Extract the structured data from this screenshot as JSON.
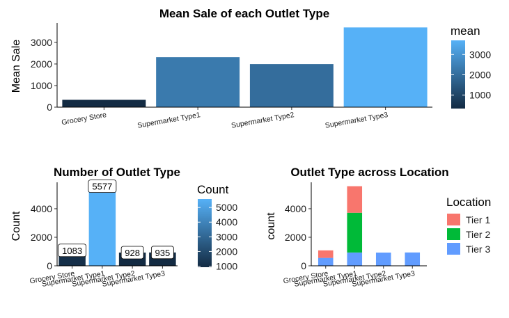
{
  "chart_data": [
    {
      "type": "bar",
      "title": "Mean Sale of each Outlet Type",
      "xlabel": "",
      "ylabel": "Mean Sale",
      "categories": [
        "Grocery Store",
        "Supermarket Type1",
        "Supermarket Type2",
        "Supermarket Type3"
      ],
      "values": [
        340,
        2316,
        1995,
        3694
      ],
      "ylim": [
        0,
        3900
      ],
      "yticks": [
        0,
        1000,
        2000,
        3000
      ],
      "legend": {
        "title": "mean",
        "type": "colorbar",
        "ticks": [
          1000,
          2000,
          3000
        ],
        "range": [
          340,
          3694
        ],
        "position": "right"
      },
      "colors": {
        "low": "#132B43",
        "high": "#56B1F7"
      },
      "grid": false
    },
    {
      "type": "bar",
      "title": "Number of Outlet Type",
      "xlabel": "",
      "ylabel": "Count",
      "categories": [
        "Grocery Store",
        "Supermarket Type1",
        "Supermarket Type2",
        "Supermarket Type3"
      ],
      "values": [
        1083,
        5577,
        928,
        935
      ],
      "data_labels": [
        "1083",
        "5577",
        "928",
        "935"
      ],
      "ylim": [
        0,
        5850
      ],
      "yticks": [
        0,
        2000,
        4000
      ],
      "legend": {
        "title": "Count",
        "type": "colorbar",
        "ticks": [
          1000,
          2000,
          3000,
          4000,
          5000
        ],
        "range": [
          928,
          5577
        ],
        "position": "right"
      },
      "colors": {
        "low": "#132B43",
        "high": "#56B1F7"
      },
      "grid": false
    },
    {
      "type": "bar",
      "stacked": true,
      "title": "Outlet Type across Location",
      "xlabel": "",
      "ylabel": "count",
      "categories": [
        "Grocery Store",
        "Supermarket Type1",
        "Supermarket Type2",
        "Supermarket Type3"
      ],
      "series": [
        {
          "name": "Tier 1",
          "values": [
            528,
            1860,
            0,
            0
          ],
          "color": "#F8766D"
        },
        {
          "name": "Tier 2",
          "values": [
            0,
            2785,
            0,
            0
          ],
          "color": "#00BA38"
        },
        {
          "name": "Tier 3",
          "values": [
            555,
            932,
            928,
            935
          ],
          "color": "#619CFF"
        }
      ],
      "ylim": [
        0,
        5850
      ],
      "yticks": [
        0,
        2000,
        4000
      ],
      "legend": {
        "title": "Location",
        "position": "right"
      },
      "grid": false
    }
  ]
}
